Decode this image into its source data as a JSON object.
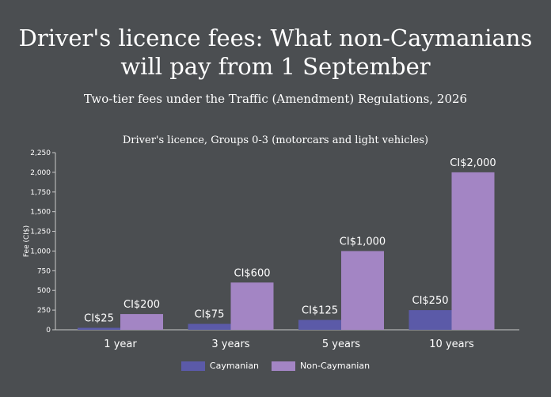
{
  "title_line1": "Driver's licence fees: What non-Caymanians",
  "title_line2": "will pay from 1 September",
  "subtitle": "Two-tier fees under the Traffic (Amendment) Regulations, 2026",
  "colors": {
    "background": "#4b4e51",
    "caymanian": "#5b5aa8",
    "non_caymanian": "#a385c4",
    "axis": "#c9c9c9"
  },
  "chart_data": {
    "type": "bar",
    "title": "Driver's licence, Groups 0-3 (motorcars and light vehicles)",
    "xlabel": "",
    "ylabel": "Fee (CI$)",
    "categories": [
      "1 year",
      "3 years",
      "5 years",
      "10 years"
    ],
    "ylim": [
      0,
      2250
    ],
    "yticks": [
      0,
      250,
      500,
      750,
      1000,
      1250,
      1500,
      1750,
      2000,
      2250
    ],
    "ytick_labels": [
      "0",
      "250",
      "500",
      "750",
      "1,000",
      "1,250",
      "1,500",
      "1,750",
      "2,000",
      "2,250"
    ],
    "series": [
      {
        "name": "Caymanian",
        "values": [
          25,
          75,
          125,
          250
        ],
        "labels": [
          "CI$25",
          "CI$75",
          "CI$125",
          "CI$250"
        ]
      },
      {
        "name": "Non-Caymanian",
        "values": [
          200,
          600,
          1000,
          2000
        ],
        "labels": [
          "CI$200",
          "CI$600",
          "CI$1,000",
          "CI$2,000"
        ]
      }
    ],
    "grid": false,
    "legend_position": "bottom"
  }
}
